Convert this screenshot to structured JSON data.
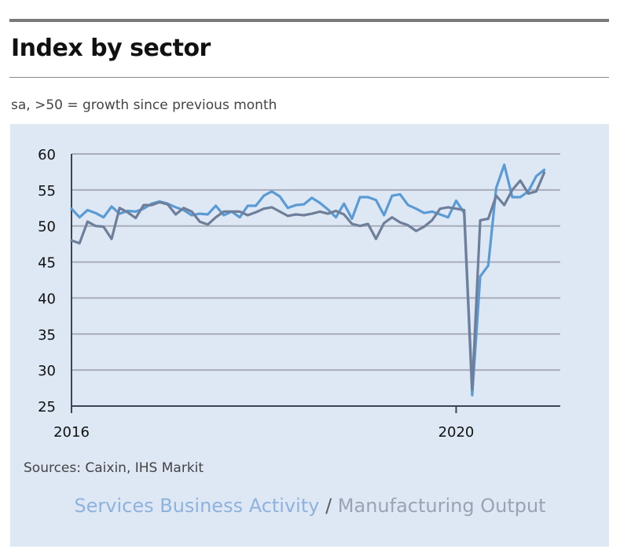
{
  "header": {
    "title": "Index by sector",
    "subtitle": "sa, >50 = growth since previous month"
  },
  "footer": {
    "source": "Sources: Caixin, IHS Markit"
  },
  "colors": {
    "services": "#5b9bd5",
    "manufacturing": "#6f7f99",
    "grid": "#a8acb8",
    "axis": "#3d4455"
  },
  "chart_data": {
    "type": "line",
    "title": "Index by sector",
    "ylim": [
      25,
      60
    ],
    "yticks": [
      25,
      30,
      35,
      40,
      45,
      50,
      55,
      60
    ],
    "xlim": [
      2016.0,
      2021.083
    ],
    "xticks": [
      {
        "value": 2016,
        "label": "2016"
      },
      {
        "value": 2020,
        "label": "2020"
      }
    ],
    "x_start": 2016.0,
    "x_step_months": 1,
    "legend": {
      "services_label": "Services Business Activity",
      "separator": " / ",
      "manufacturing_label": "Manufacturing Output"
    },
    "series": [
      {
        "name": "Services Business Activity",
        "color_key": "services",
        "values": [
          52.4,
          51.2,
          52.2,
          51.8,
          51.2,
          52.7,
          51.7,
          52.1,
          52.0,
          52.4,
          53.1,
          53.4,
          53.1,
          52.6,
          52.2,
          51.5,
          51.7,
          51.6,
          52.8,
          51.5,
          52.0,
          51.2,
          52.8,
          52.8,
          54.2,
          54.8,
          54.1,
          52.5,
          52.9,
          53.0,
          53.9,
          53.2,
          52.3,
          51.2,
          53.1,
          51.0,
          54.0,
          54.0,
          53.6,
          51.5,
          54.2,
          54.4,
          52.9,
          52.4,
          51.8,
          52.0,
          51.6,
          51.2,
          53.5,
          51.8,
          26.5,
          43.0,
          44.5,
          55.3,
          58.5,
          54.0,
          54.0,
          54.8,
          56.9,
          57.8
        ]
      },
      {
        "name": "Manufacturing Output",
        "color_key": "manufacturing",
        "values": [
          48.0,
          47.6,
          50.6,
          50.0,
          49.9,
          48.2,
          52.5,
          51.9,
          51.1,
          52.9,
          52.9,
          53.3,
          53.0,
          51.6,
          52.5,
          52.0,
          50.6,
          50.2,
          51.2,
          52.0,
          52.0,
          52.0,
          51.5,
          51.9,
          52.4,
          52.6,
          52.0,
          51.4,
          51.6,
          51.5,
          51.7,
          52.0,
          51.7,
          52.1,
          51.6,
          50.3,
          50.0,
          50.3,
          48.2,
          50.4,
          51.2,
          50.5,
          50.1,
          49.3,
          49.9,
          50.8,
          52.4,
          52.6,
          52.4,
          52.2,
          27.3,
          50.8,
          51.0,
          54.2,
          52.9,
          55.0,
          56.3,
          54.5,
          54.8,
          57.4
        ]
      }
    ]
  }
}
